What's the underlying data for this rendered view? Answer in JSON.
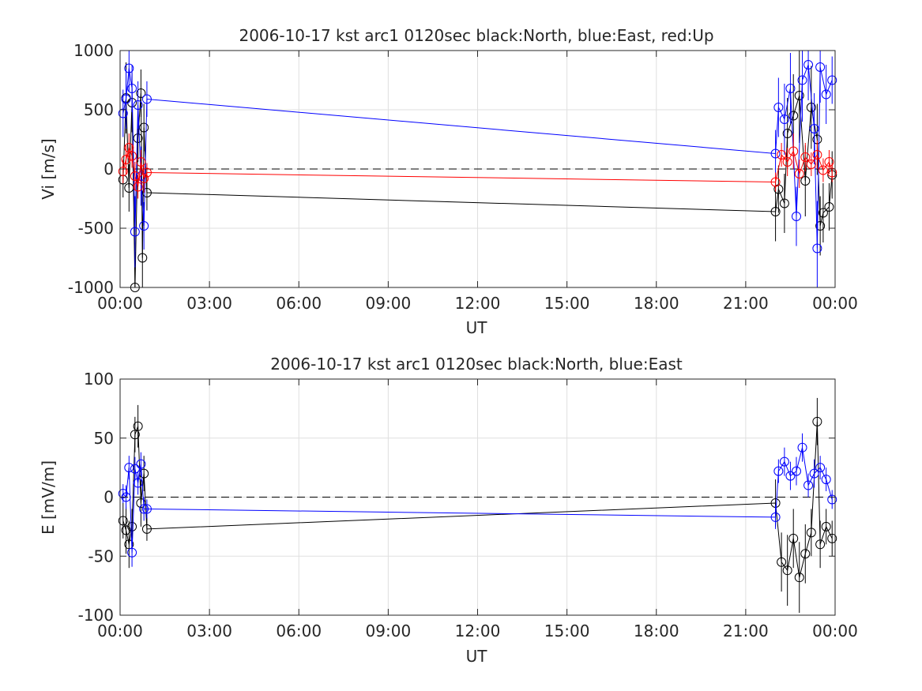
{
  "chart_data": [
    {
      "type": "scatter",
      "title": "2006-10-17 kst arc1 0120sec black:North, blue:East, red:Up",
      "xlabel": "UT",
      "ylabel": "Vi [m/s]",
      "xlim": [
        0,
        24
      ],
      "ylim": [
        -1000,
        1000
      ],
      "grid": true,
      "zero_line": true,
      "xticks": [
        0,
        3,
        6,
        9,
        12,
        15,
        18,
        21,
        24
      ],
      "xtick_labels": [
        "00:00",
        "03:00",
        "06:00",
        "09:00",
        "12:00",
        "15:00",
        "18:00",
        "21:00",
        "00:00"
      ],
      "yticks": [
        -1000,
        -500,
        0,
        500,
        1000
      ],
      "ytick_labels": [
        "-1000",
        "-500",
        "0",
        "500",
        "1000"
      ],
      "series": [
        {
          "name": "North",
          "color": "#000000",
          "x": [
            0.1,
            0.2,
            0.3,
            0.4,
            0.5,
            0.6,
            0.7,
            0.75,
            0.8,
            0.9,
            22.0,
            22.1,
            22.3,
            22.4,
            22.6,
            22.8,
            23.0,
            23.2,
            23.4,
            23.5,
            23.6,
            23.8,
            23.9
          ],
          "y": [
            -90,
            600,
            -160,
            560,
            -1000,
            260,
            640,
            -750,
            350,
            -200,
            -360,
            -170,
            -290,
            300,
            450,
            620,
            -100,
            520,
            250,
            -480,
            -370,
            -320,
            -50
          ],
          "err": [
            150,
            300,
            200,
            250,
            300,
            200,
            200,
            250,
            200,
            150,
            250,
            200,
            250,
            300,
            350,
            400,
            300,
            350,
            300,
            250,
            250,
            200,
            200
          ]
        },
        {
          "name": "East",
          "color": "#0000ff",
          "x": [
            0.1,
            0.2,
            0.3,
            0.4,
            0.5,
            0.6,
            0.7,
            0.8,
            0.9,
            22.0,
            22.1,
            22.3,
            22.5,
            22.7,
            22.9,
            23.1,
            23.3,
            23.4,
            23.5,
            23.7,
            23.9
          ],
          "y": [
            470,
            590,
            850,
            680,
            -530,
            540,
            -60,
            -480,
            590,
            130,
            520,
            420,
            680,
            -400,
            750,
            880,
            340,
            -670,
            860,
            630,
            750
          ],
          "err": [
            200,
            250,
            200,
            200,
            300,
            200,
            250,
            200,
            150,
            200,
            250,
            300,
            300,
            250,
            350,
            300,
            300,
            400,
            300,
            250,
            200
          ]
        },
        {
          "name": "Up",
          "color": "#ff0000",
          "x": [
            0.1,
            0.2,
            0.3,
            0.4,
            0.5,
            0.6,
            0.7,
            0.8,
            0.9,
            22.0,
            22.2,
            22.4,
            22.6,
            22.8,
            23.0,
            23.2,
            23.4,
            23.6,
            23.8,
            23.9
          ],
          "y": [
            -20,
            80,
            180,
            110,
            -60,
            -150,
            60,
            -80,
            -30,
            -110,
            120,
            60,
            150,
            -40,
            100,
            40,
            120,
            -10,
            60,
            -30
          ],
          "err": [
            100,
            120,
            120,
            100,
            120,
            100,
            100,
            120,
            80,
            80,
            100,
            120,
            150,
            120,
            120,
            100,
            120,
            100,
            100,
            80
          ]
        }
      ]
    },
    {
      "type": "scatter",
      "title": "2006-10-17 kst arc1 0120sec black:North, blue:East",
      "xlabel": "UT",
      "ylabel": "E [mV/m]",
      "xlim": [
        0,
        24
      ],
      "ylim": [
        -100,
        100
      ],
      "grid": true,
      "zero_line": true,
      "xticks": [
        0,
        3,
        6,
        9,
        12,
        15,
        18,
        21,
        24
      ],
      "xtick_labels": [
        "00:00",
        "03:00",
        "06:00",
        "09:00",
        "12:00",
        "15:00",
        "18:00",
        "21:00",
        "00:00"
      ],
      "yticks": [
        -100,
        -50,
        0,
        50,
        100
      ],
      "ytick_labels": [
        "-100",
        "-50",
        "0",
        "50",
        "100"
      ],
      "series": [
        {
          "name": "North",
          "color": "#000000",
          "x": [
            0.1,
            0.2,
            0.3,
            0.4,
            0.5,
            0.6,
            0.7,
            0.8,
            0.9,
            22.0,
            22.2,
            22.4,
            22.6,
            22.8,
            23.0,
            23.2,
            23.4,
            23.5,
            23.7,
            23.9
          ],
          "y": [
            -20,
            -28,
            -40,
            -25,
            53,
            60,
            -5,
            20,
            -27,
            -5,
            -55,
            -62,
            -35,
            -68,
            -48,
            -30,
            64,
            -40,
            -25,
            -35
          ],
          "err": [
            15,
            20,
            20,
            15,
            15,
            18,
            20,
            15,
            10,
            20,
            25,
            30,
            25,
            30,
            25,
            20,
            20,
            20,
            15,
            15
          ]
        },
        {
          "name": "East",
          "color": "#0000ff",
          "x": [
            0.1,
            0.2,
            0.3,
            0.4,
            0.5,
            0.6,
            0.7,
            0.8,
            0.9,
            22.0,
            22.1,
            22.3,
            22.5,
            22.7,
            22.9,
            23.1,
            23.3,
            23.5,
            23.7,
            23.9
          ],
          "y": [
            3,
            0,
            25,
            -47,
            24,
            12,
            28,
            -10,
            -10,
            -17,
            22,
            30,
            18,
            22,
            42,
            10,
            20,
            25,
            15,
            -2
          ],
          "err": [
            8,
            10,
            10,
            12,
            10,
            10,
            10,
            10,
            8,
            10,
            10,
            12,
            12,
            12,
            12,
            10,
            12,
            10,
            10,
            8
          ]
        }
      ]
    }
  ]
}
